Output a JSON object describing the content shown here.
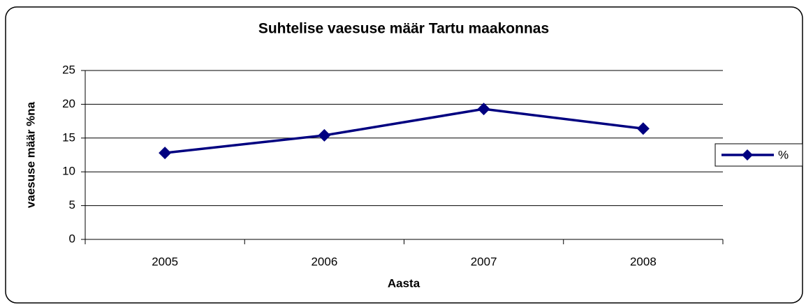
{
  "chart_data": {
    "type": "line",
    "title": "Suhtelise vaesuse määr Tartu maakonnas",
    "xlabel": "Aasta",
    "ylabel": "vaesuse määr %na",
    "categories": [
      "2005",
      "2006",
      "2007",
      "2008"
    ],
    "series": [
      {
        "name": "%",
        "color": "#000080",
        "values": [
          12.8,
          15.4,
          19.3,
          16.4
        ]
      }
    ],
    "ylim": [
      0,
      25
    ],
    "yticks": [
      0,
      5,
      10,
      15,
      20,
      25
    ],
    "grid": true,
    "legend": "right"
  }
}
